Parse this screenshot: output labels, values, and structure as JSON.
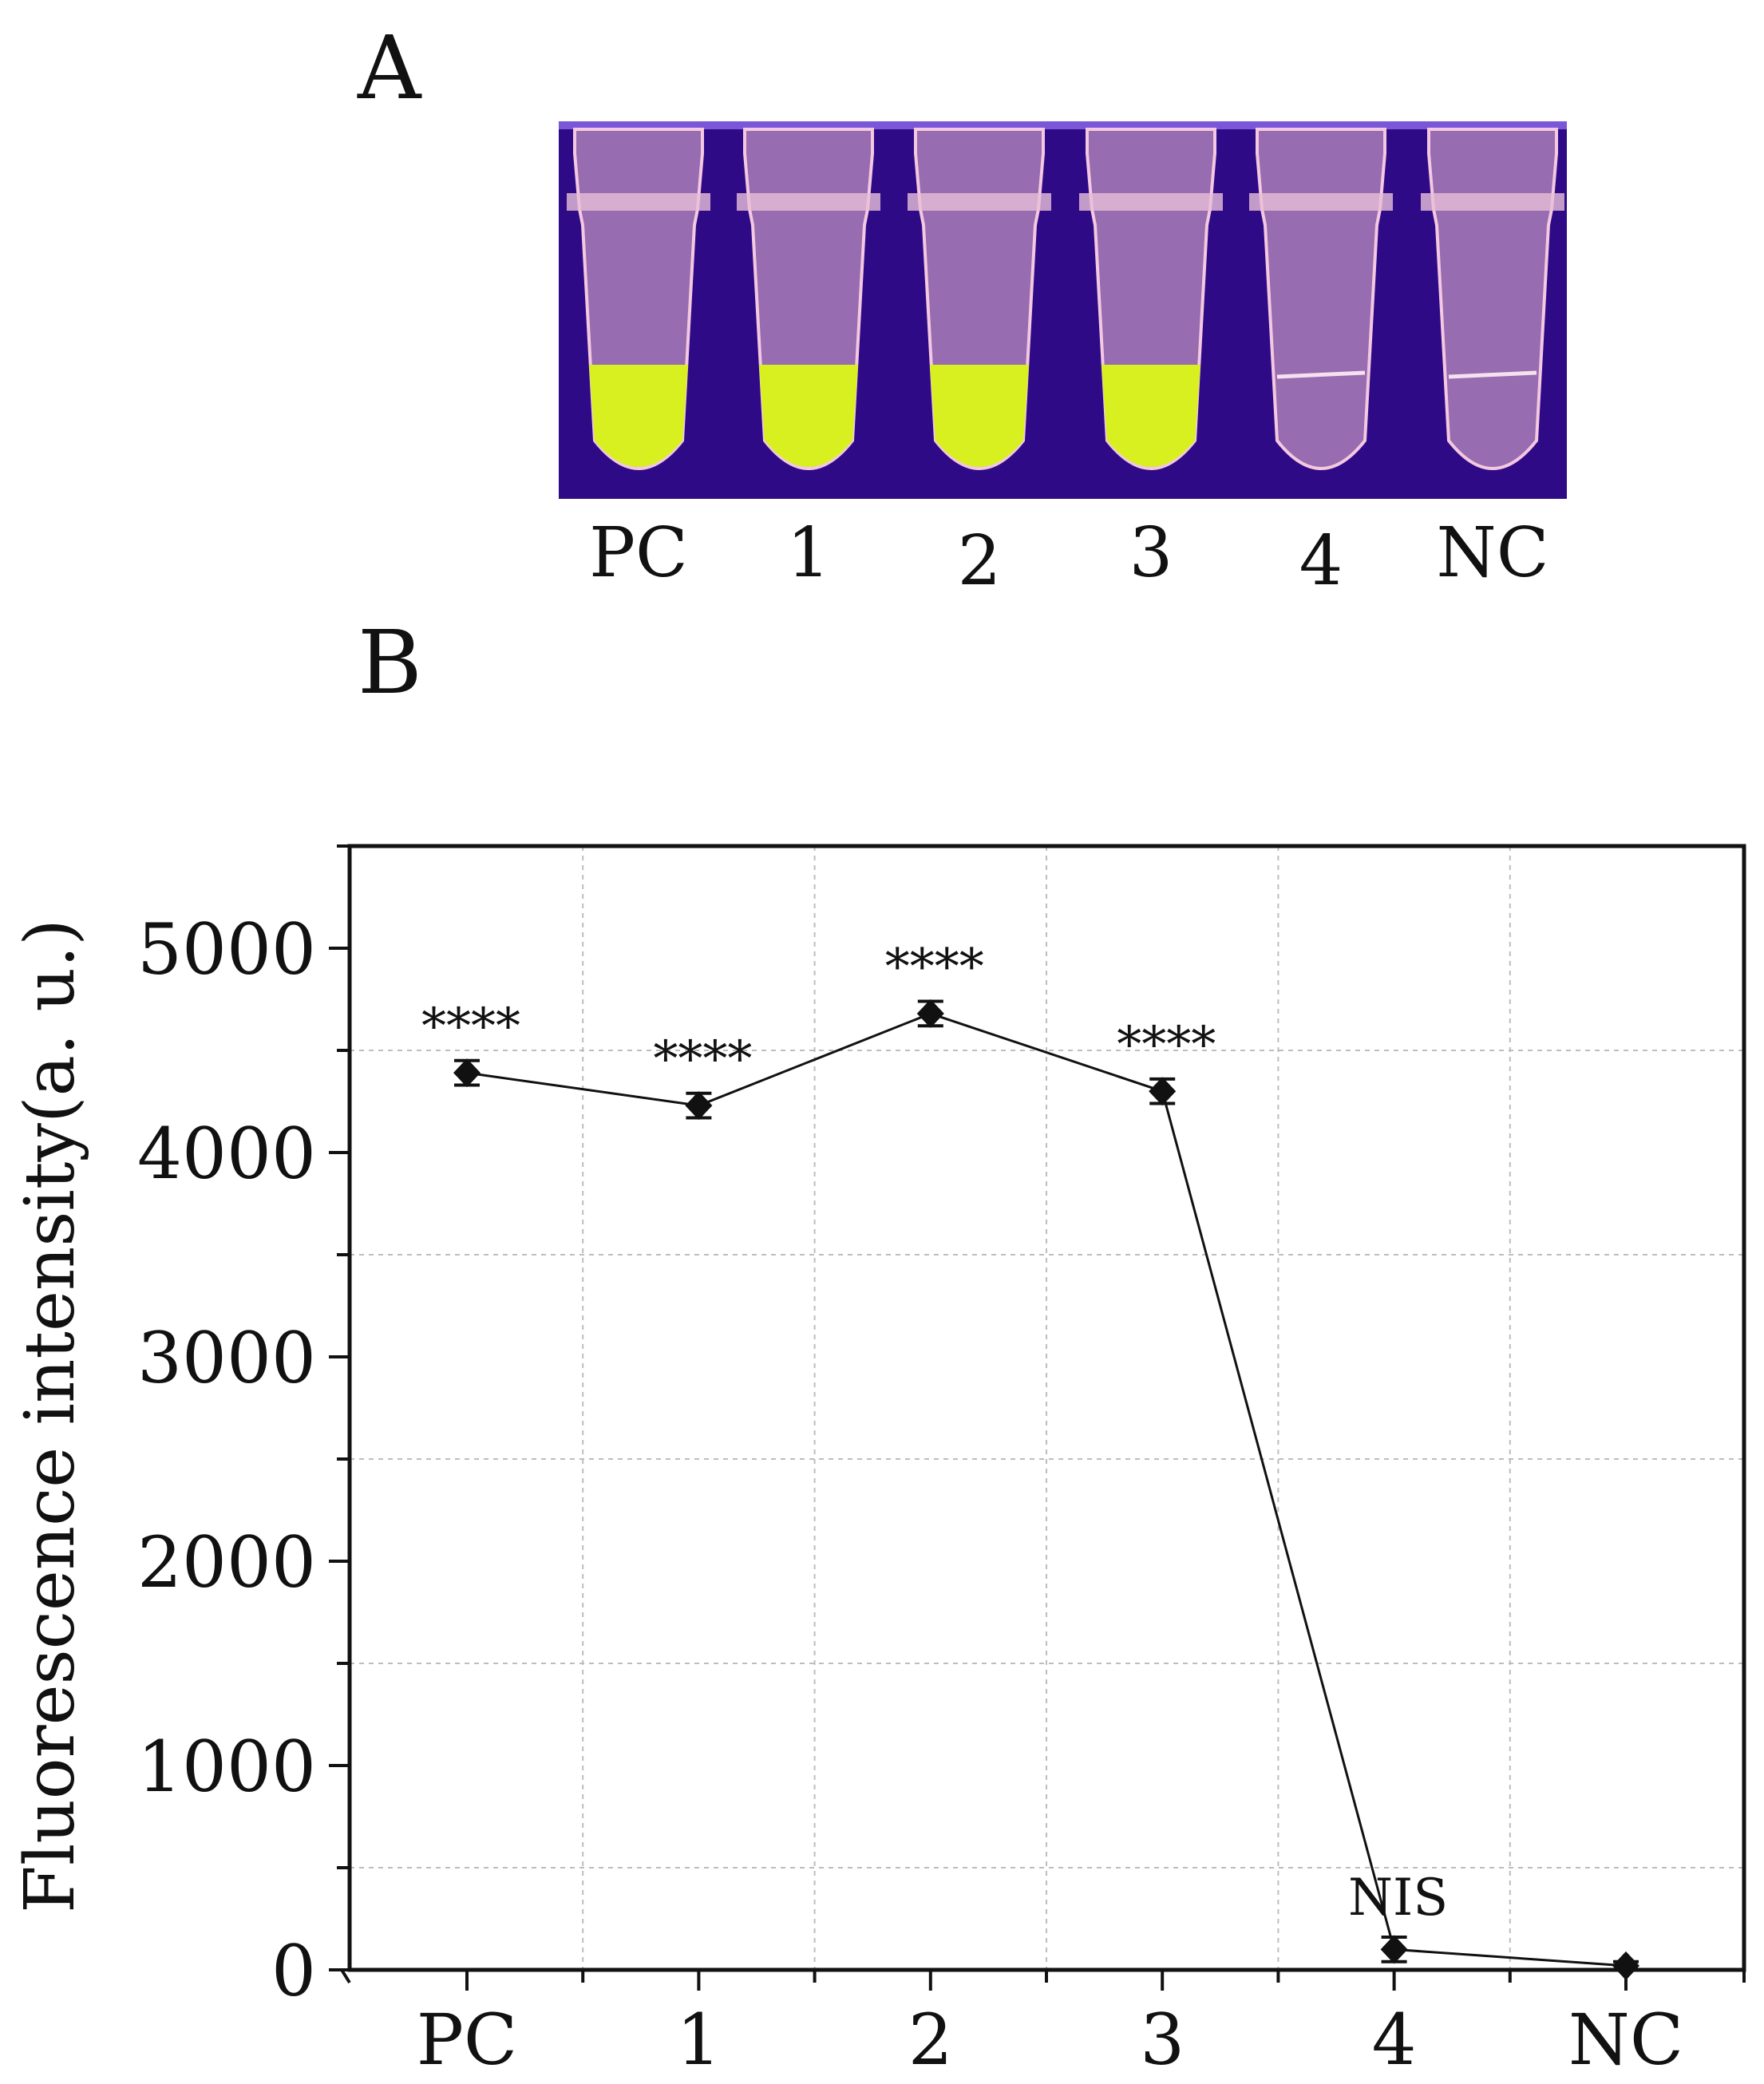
{
  "panels": {
    "a_label": "A",
    "b_label": "B"
  },
  "tubes": [
    {
      "label": "PC",
      "positive": true
    },
    {
      "label": "1",
      "positive": true
    },
    {
      "label": "2",
      "positive": true
    },
    {
      "label": "3",
      "positive": true
    },
    {
      "label": "4",
      "positive": false
    },
    {
      "label": "NC",
      "positive": false
    }
  ],
  "colors": {
    "uv_background": "#2e0a86",
    "fluorescence": "#d8f020",
    "tube": "#d9a9c9",
    "strip_top": "#7a56d8"
  },
  "chart_data": {
    "type": "line",
    "categories": [
      "PC",
      "1",
      "2",
      "3",
      "4",
      "NC"
    ],
    "series": [
      {
        "name": "Fluorescence intensity",
        "values": [
          4390,
          4230,
          4680,
          4300,
          100,
          20
        ],
        "errors": [
          60,
          60,
          60,
          60,
          60,
          20
        ],
        "annotations": [
          "****",
          "****",
          "****",
          "****",
          "NIS",
          ""
        ]
      }
    ],
    "title": "",
    "xlabel": "",
    "ylabel": "Fluorescence intensity(a. u.)",
    "ylim": [
      0,
      5500
    ],
    "yticks": [
      0,
      1000,
      2000,
      3000,
      4000,
      5000
    ],
    "grid": true
  }
}
